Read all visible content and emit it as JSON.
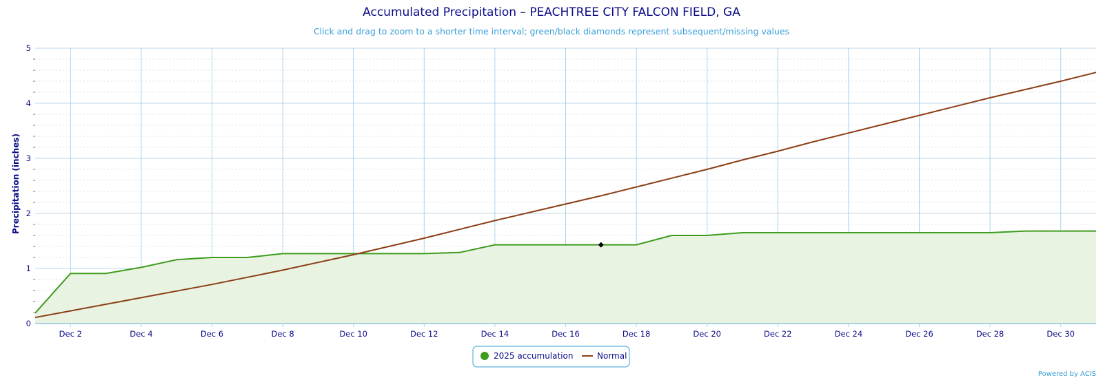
{
  "page": {
    "title": "Accumulated Precipitation – PEACHTREE CITY FALCON FIELD, GA",
    "subtitle": "Click and drag to zoom to a shorter time interval; green/black diamonds represent subsequent/missing values",
    "credit": "Powered by ACIS"
  },
  "chart_data": {
    "type": "area",
    "title": "Accumulated Precipitation – PEACHTREE CITY FALCON FIELD, GA",
    "subtitle": "Click and drag to zoom to a shorter time interval; green/black diamonds represent subsequent/missing values",
    "xlabel": "",
    "ylabel": "Precipitation (inches)",
    "ylim": [
      0,
      5
    ],
    "y_ticks": [
      0,
      1,
      2,
      3,
      4,
      5
    ],
    "x_range": [
      1,
      31
    ],
    "x_ticks": [
      2,
      4,
      6,
      8,
      10,
      12,
      14,
      16,
      18,
      20,
      22,
      24,
      26,
      28,
      30
    ],
    "x_tick_labels": [
      "Dec 2",
      "Dec 4",
      "Dec 6",
      "Dec 8",
      "Dec 10",
      "Dec 12",
      "Dec 14",
      "Dec 16",
      "Dec 18",
      "Dec 20",
      "Dec 22",
      "Dec 24",
      "Dec 26",
      "Dec 28",
      "Dec 30"
    ],
    "grid": true,
    "legend": "bottom-center",
    "x": [
      1,
      2,
      3,
      4,
      5,
      6,
      7,
      8,
      9,
      10,
      11,
      12,
      13,
      14,
      15,
      16,
      17,
      18,
      19,
      20,
      21,
      22,
      23,
      24,
      25,
      26,
      27,
      28,
      29,
      30,
      31
    ],
    "series": [
      {
        "name": "2025 accumulation",
        "color": "#3d9c1c",
        "fill": "#e8f3e1",
        "values": [
          0.19,
          0.91,
          0.91,
          1.02,
          1.16,
          1.2,
          1.2,
          1.27,
          1.27,
          1.27,
          1.27,
          1.27,
          1.29,
          1.43,
          1.43,
          1.43,
          1.43,
          1.43,
          1.6,
          1.6,
          1.65,
          1.65,
          1.65,
          1.65,
          1.65,
          1.65,
          1.65,
          1.65,
          1.68,
          1.68,
          1.68
        ]
      },
      {
        "name": "Normal",
        "color": "#8b3e14",
        "values": [
          0.11,
          0.23,
          0.35,
          0.47,
          0.59,
          0.71,
          0.84,
          0.97,
          1.11,
          1.25,
          1.4,
          1.55,
          1.71,
          1.87,
          2.02,
          2.17,
          2.32,
          2.48,
          2.64,
          2.8,
          2.97,
          3.13,
          3.3,
          3.46,
          3.62,
          3.78,
          3.94,
          4.1,
          4.25,
          4.4,
          4.56
        ]
      }
    ],
    "markers": [
      {
        "type": "missing",
        "x": 17,
        "y": 1.43,
        "color": "#000000"
      }
    ]
  }
}
